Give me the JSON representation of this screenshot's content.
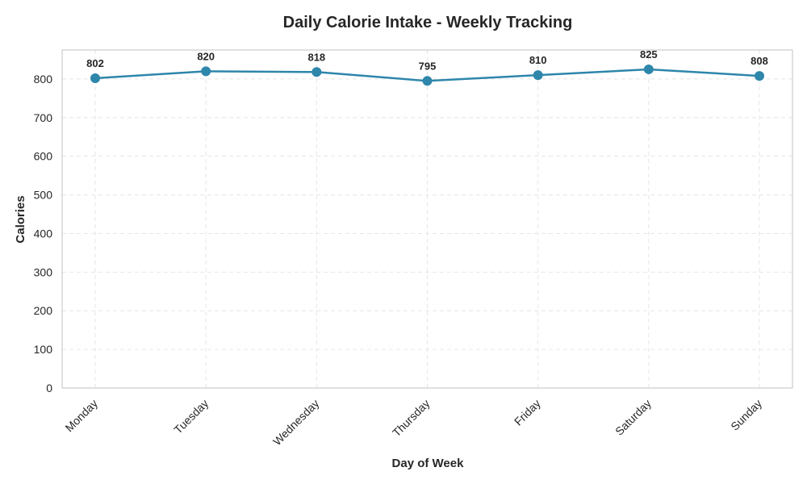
{
  "chart_data": {
    "type": "line",
    "title": "Daily Calorie Intake - Weekly Tracking",
    "xlabel": "Day of Week",
    "ylabel": "Calories",
    "categories": [
      "Monday",
      "Tuesday",
      "Wednesday",
      "Thursday",
      "Friday",
      "Saturday",
      "Sunday"
    ],
    "series": [
      {
        "name": "Calories",
        "values": [
          802,
          820,
          818,
          795,
          810,
          825,
          808
        ],
        "color": "#2e86ab"
      }
    ],
    "ylim": [
      0,
      875
    ],
    "yticks": [
      0,
      100,
      200,
      300,
      400,
      500,
      600,
      700,
      800
    ],
    "grid": true,
    "data_labels": true
  }
}
